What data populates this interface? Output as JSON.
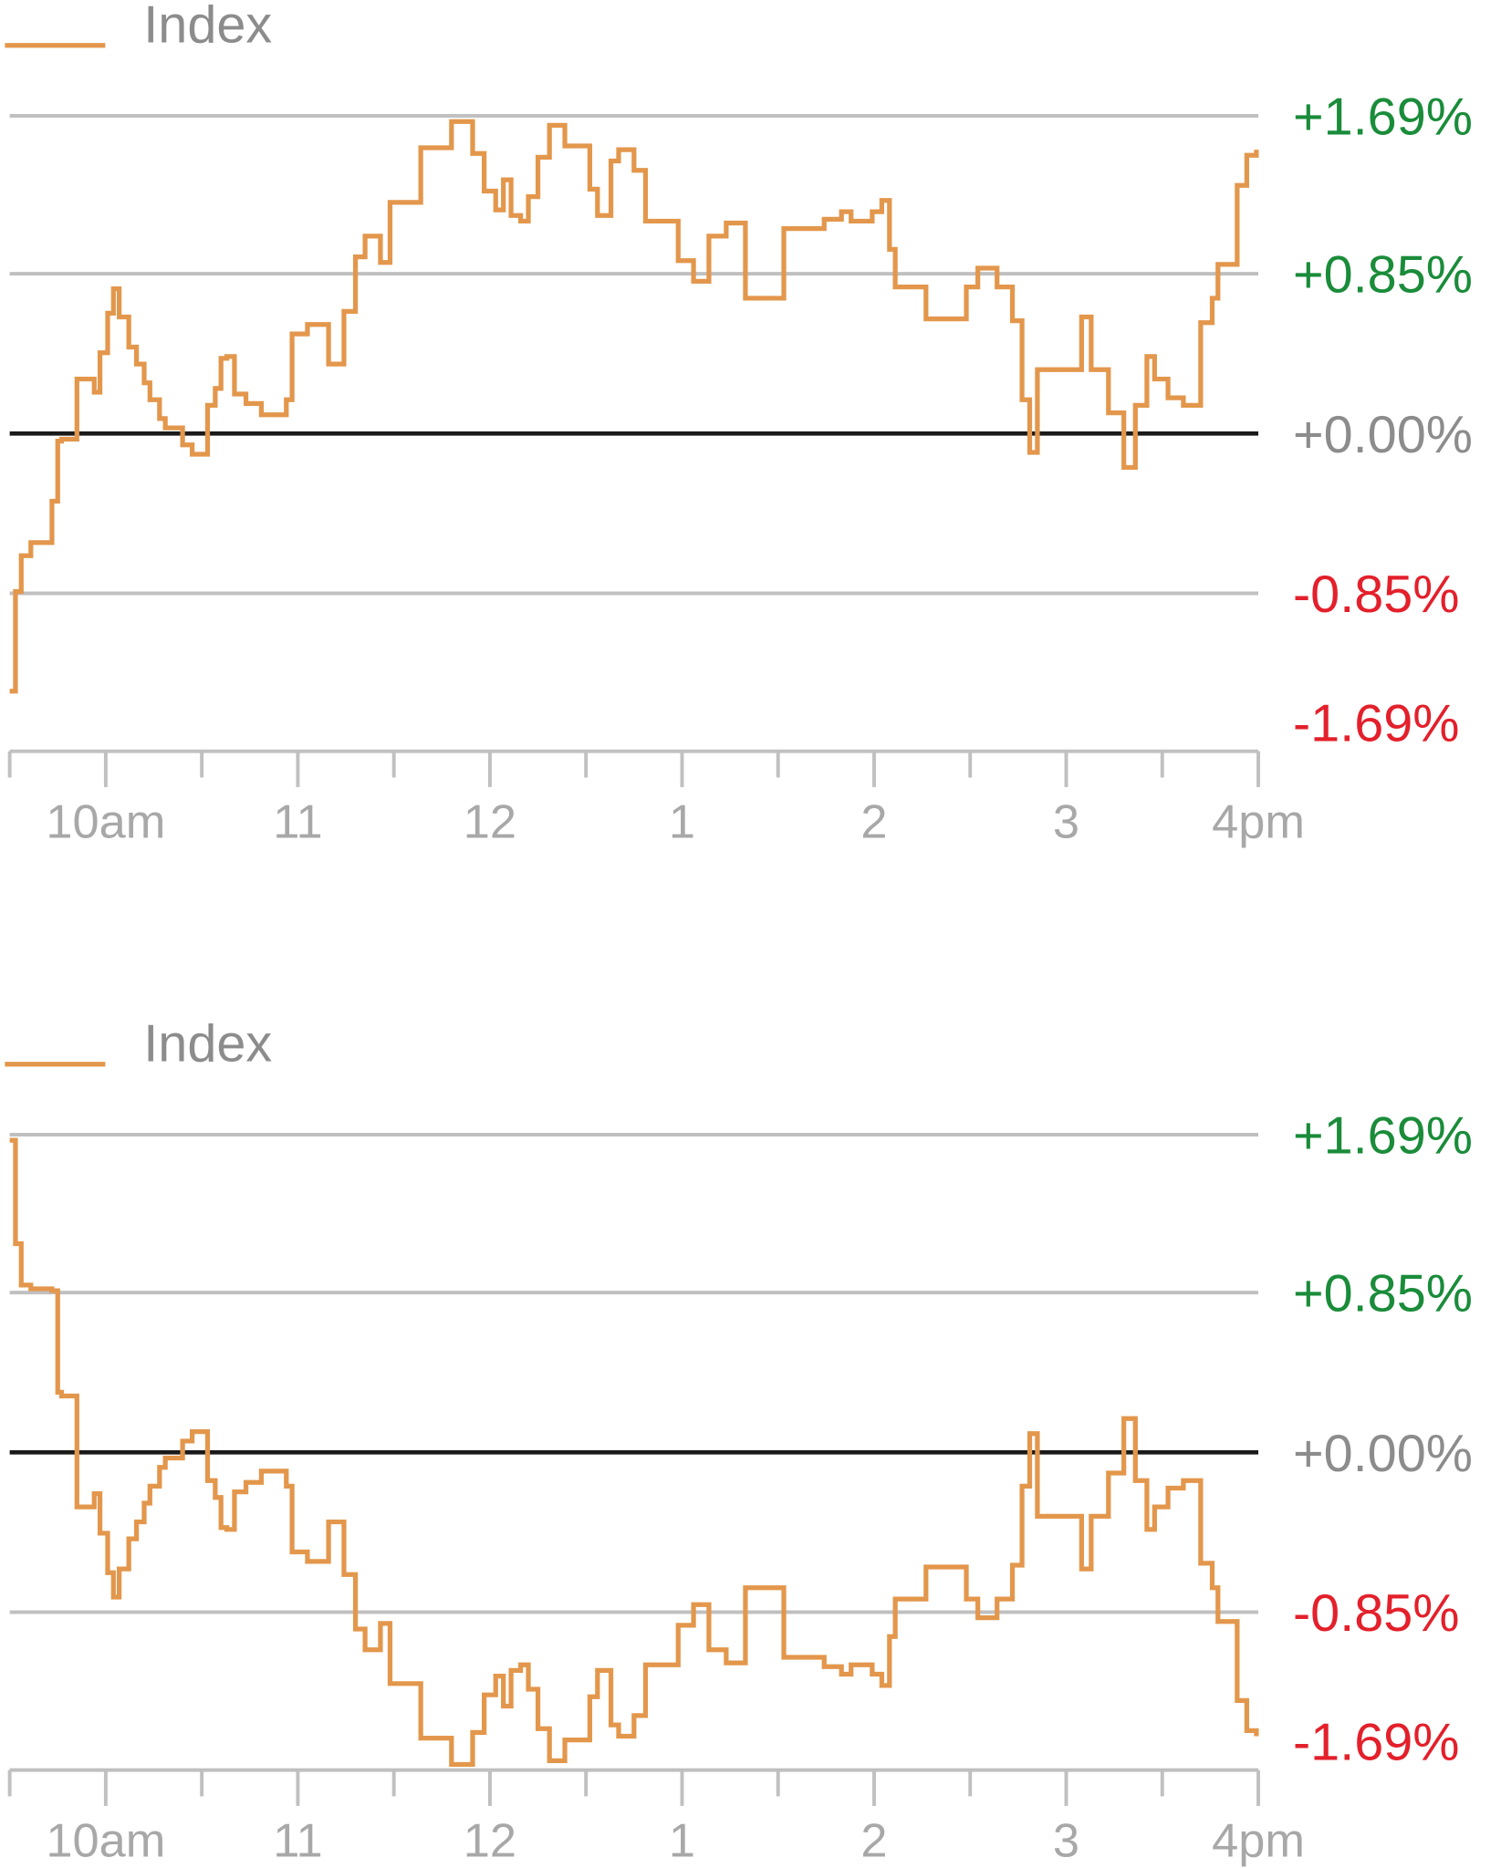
{
  "chart_data": [
    {
      "type": "line",
      "step": "post",
      "xlim": [
        9.5,
        16
      ],
      "ylim": [
        -1.69,
        1.69
      ],
      "xticks": [
        {
          "value": 10,
          "label": "10am"
        },
        11,
        12,
        {
          "value": 13,
          "label": "1"
        },
        {
          "value": 14,
          "label": "2"
        },
        {
          "value": 15,
          "label": "3"
        },
        {
          "value": 16,
          "label": "4pm"
        }
      ],
      "xminor_ticks": [
        9.5,
        10.5,
        11.5,
        12.5,
        13.5,
        14.5,
        15.5
      ],
      "yticks": [
        {
          "value": 1.69,
          "label": "+1.69%"
        },
        {
          "value": 0.85,
          "label": "+0.85%"
        },
        {
          "value": 0,
          "label": "+0.00%"
        },
        {
          "value": -0.85,
          "label": "-0.85%"
        },
        {
          "value": -1.69,
          "label": "-1.69%"
        }
      ],
      "tick_colors": {
        "positive": "#1a8c3a",
        "zero": "#8c8c8c",
        "negative": "#e3202b"
      },
      "grid": true,
      "legend": "top-left",
      "x": [
        9.5,
        9.53,
        9.56,
        9.61,
        9.69,
        9.72,
        9.75,
        9.77,
        9.85,
        9.94,
        9.97,
        10.01,
        10.04,
        10.07,
        10.12,
        10.16,
        10.2,
        10.23,
        10.28,
        10.31,
        10.4,
        10.45,
        10.53,
        10.57,
        10.6,
        10.63,
        10.67,
        10.73,
        10.81,
        10.94,
        10.97,
        11.05,
        11.16,
        11.24,
        11.3,
        11.35,
        11.43,
        11.48,
        11.64,
        11.8,
        11.91,
        11.97,
        12.03,
        12.07,
        12.11,
        12.16,
        12.2,
        12.25,
        12.31,
        12.39,
        12.52,
        12.56,
        12.63,
        12.67,
        12.75,
        12.81,
        12.98,
        13.06,
        13.14,
        13.23,
        13.33,
        13.53,
        13.74,
        13.83,
        13.88,
        13.99,
        14.04,
        14.08,
        14.11,
        14.27,
        14.48,
        14.54,
        14.64,
        14.72,
        14.77,
        14.81,
        14.85,
        15.08,
        15.13,
        15.22,
        15.3,
        15.36,
        15.42,
        15.46,
        15.53,
        15.61,
        15.7,
        15.76,
        15.79,
        15.89,
        15.94,
        15.99
      ],
      "series": [
        {
          "name": "Index",
          "color": "#e3974c",
          "values": [
            -1.37,
            -0.84,
            -0.65,
            -0.58,
            -0.58,
            -0.36,
            -0.04,
            -0.03,
            0.29,
            0.22,
            0.43,
            0.64,
            0.77,
            0.62,
            0.46,
            0.37,
            0.27,
            0.18,
            0.08,
            0.03,
            -0.06,
            -0.11,
            0.15,
            0.24,
            0.4,
            0.41,
            0.21,
            0.16,
            0.1,
            0.18,
            0.53,
            0.58,
            0.37,
            0.65,
            0.94,
            1.05,
            0.91,
            1.23,
            1.52,
            1.66,
            1.49,
            1.29,
            1.19,
            1.35,
            1.16,
            1.13,
            1.26,
            1.47,
            1.64,
            1.53,
            1.3,
            1.16,
            1.45,
            1.51,
            1.4,
            1.13,
            0.92,
            0.81,
            1.05,
            1.12,
            0.72,
            1.09,
            1.14,
            1.18,
            1.13,
            1.18,
            1.24,
            0.98,
            0.78,
            0.61,
            0.78,
            0.88,
            0.78,
            0.6,
            0.18,
            -0.1,
            0.34,
            0.62,
            0.34,
            0.11,
            -0.18,
            0.15,
            0.41,
            0.29,
            0.19,
            0.15,
            0.59,
            0.72,
            0.9,
            1.32,
            1.48,
            1.51
          ]
        }
      ]
    },
    {
      "type": "line",
      "step": "post",
      "xlim": [
        9.5,
        16
      ],
      "ylim": [
        -1.69,
        1.69
      ],
      "xticks": [
        {
          "value": 10,
          "label": "10am"
        },
        11,
        12,
        {
          "value": 13,
          "label": "1"
        },
        {
          "value": 14,
          "label": "2"
        },
        {
          "value": 15,
          "label": "3"
        },
        {
          "value": 16,
          "label": "4pm"
        }
      ],
      "xminor_ticks": [
        9.5,
        10.5,
        11.5,
        12.5,
        13.5,
        14.5,
        15.5
      ],
      "yticks": [
        {
          "value": 1.69,
          "label": "+1.69%"
        },
        {
          "value": 0.85,
          "label": "+0.85%"
        },
        {
          "value": 0,
          "label": "+0.00%"
        },
        {
          "value": -0.85,
          "label": "-0.85%"
        },
        {
          "value": -1.69,
          "label": "-1.69%"
        }
      ],
      "tick_colors": {
        "positive": "#1a8c3a",
        "zero": "#8c8c8c",
        "negative": "#e3202b"
      },
      "grid": true,
      "legend": "top-left",
      "x": [
        9.5,
        9.53,
        9.56,
        9.61,
        9.69,
        9.72,
        9.75,
        9.77,
        9.85,
        9.94,
        9.97,
        10.01,
        10.04,
        10.07,
        10.12,
        10.16,
        10.2,
        10.23,
        10.28,
        10.31,
        10.4,
        10.45,
        10.53,
        10.57,
        10.6,
        10.63,
        10.67,
        10.73,
        10.81,
        10.94,
        10.97,
        11.05,
        11.16,
        11.24,
        11.3,
        11.35,
        11.43,
        11.48,
        11.64,
        11.8,
        11.91,
        11.97,
        12.03,
        12.07,
        12.11,
        12.16,
        12.2,
        12.25,
        12.31,
        12.39,
        12.52,
        12.56,
        12.63,
        12.67,
        12.75,
        12.81,
        12.98,
        13.06,
        13.14,
        13.23,
        13.33,
        13.53,
        13.74,
        13.83,
        13.88,
        13.99,
        14.04,
        14.08,
        14.11,
        14.27,
        14.48,
        14.54,
        14.64,
        14.72,
        14.77,
        14.81,
        14.85,
        15.08,
        15.13,
        15.22,
        15.3,
        15.36,
        15.42,
        15.46,
        15.53,
        15.61,
        15.7,
        15.76,
        15.79,
        15.89,
        15.94,
        15.99
      ],
      "series": [
        {
          "name": "Index",
          "color": "#e3974c",
          "values": [
            1.66,
            1.11,
            0.89,
            0.87,
            0.87,
            0.86,
            0.32,
            0.3,
            -0.29,
            -0.22,
            -0.43,
            -0.64,
            -0.77,
            -0.62,
            -0.46,
            -0.37,
            -0.27,
            -0.18,
            -0.08,
            -0.03,
            0.06,
            0.11,
            -0.15,
            -0.24,
            -0.4,
            -0.41,
            -0.21,
            -0.16,
            -0.1,
            -0.18,
            -0.53,
            -0.58,
            -0.37,
            -0.65,
            -0.94,
            -1.05,
            -0.91,
            -1.23,
            -1.52,
            -1.66,
            -1.49,
            -1.29,
            -1.19,
            -1.35,
            -1.16,
            -1.13,
            -1.26,
            -1.47,
            -1.64,
            -1.53,
            -1.3,
            -1.16,
            -1.45,
            -1.51,
            -1.4,
            -1.13,
            -0.92,
            -0.81,
            -1.05,
            -1.12,
            -0.72,
            -1.09,
            -1.14,
            -1.18,
            -1.13,
            -1.18,
            -1.24,
            -0.98,
            -0.78,
            -0.61,
            -0.78,
            -0.88,
            -0.78,
            -0.6,
            -0.18,
            0.1,
            -0.34,
            -0.62,
            -0.34,
            -0.11,
            0.18,
            -0.15,
            -0.41,
            -0.29,
            -0.19,
            -0.15,
            -0.59,
            -0.72,
            -0.9,
            -1.32,
            -1.48,
            -1.51
          ]
        }
      ]
    }
  ]
}
